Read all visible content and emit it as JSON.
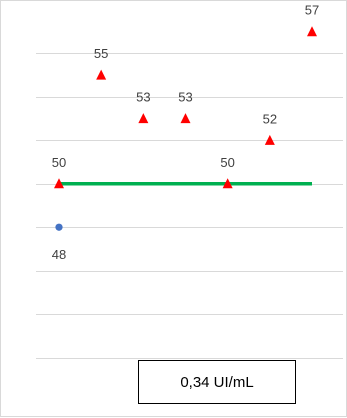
{
  "chart_data": {
    "type": "scatter",
    "x": [
      1,
      2,
      3,
      4,
      5,
      6,
      7,
      8,
      9,
      10,
      11,
      12,
      13,
      14,
      15,
      16,
      17,
      18,
      19,
      20,
      21,
      22,
      23,
      24,
      25,
      26,
      27,
      28,
      29,
      30,
      31,
      32,
      33
    ],
    "xlim": [
      0,
      34
    ],
    "ylim": [
      40,
      58
    ],
    "ytick_step": 1,
    "grid": true,
    "grid_color": "#d9d9d9",
    "series": [
      {
        "marker": "circle",
        "color": "#4472c4",
        "points": [
          {
            "x": 1,
            "y": 48,
            "label": "48"
          }
        ]
      },
      {
        "marker": "triangle",
        "color": "#ff0000",
        "points": [
          {
            "x": 1,
            "y": 50,
            "label": "50"
          },
          {
            "x": 6,
            "y": 55,
            "label": "55"
          },
          {
            "x": 11,
            "y": 53,
            "label": "53"
          },
          {
            "x": 16,
            "y": 53,
            "label": "53"
          },
          {
            "x": 21,
            "y": 50,
            "label": "50"
          },
          {
            "x": 26,
            "y": 52,
            "label": "52"
          },
          {
            "x": 31,
            "y": 57,
            "label": "57"
          }
        ]
      }
    ],
    "reference_line": {
      "y": 50,
      "x_start": 1,
      "x_end": 31,
      "color": "#00b050"
    },
    "annotation": "0,34 UI/mL"
  }
}
